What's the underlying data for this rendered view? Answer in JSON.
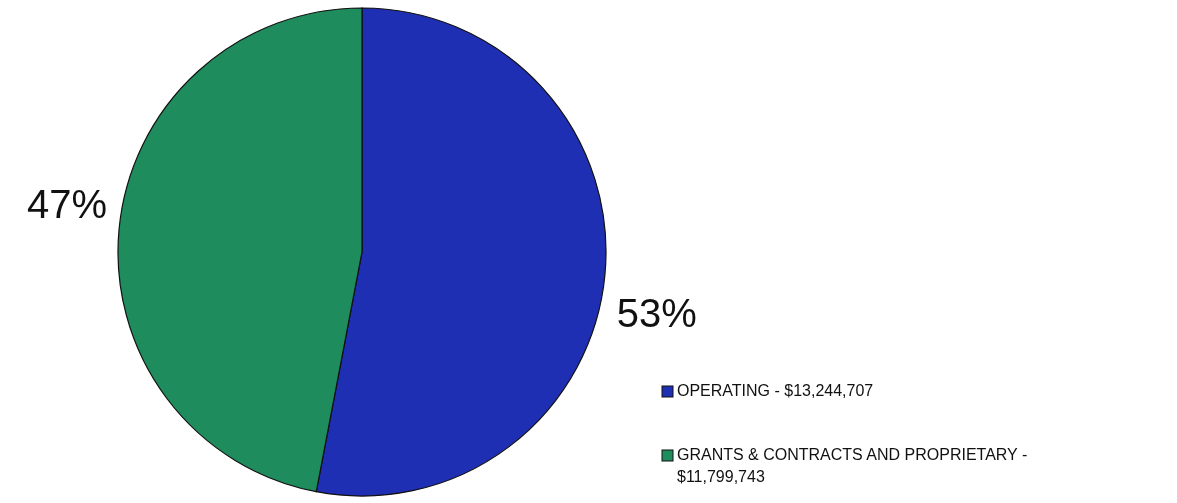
{
  "chart_data": {
    "type": "pie",
    "categories": [
      "OPERATING - $13,244,707",
      "GRANTS & CONTRACTS AND PROPRIETARY - $11,799,743"
    ],
    "values": [
      53,
      47
    ],
    "colors": [
      "#1f2fb3",
      "#1e8c5c"
    ],
    "value_labels": [
      "53%",
      "47%"
    ],
    "legend": "bottom right"
  }
}
